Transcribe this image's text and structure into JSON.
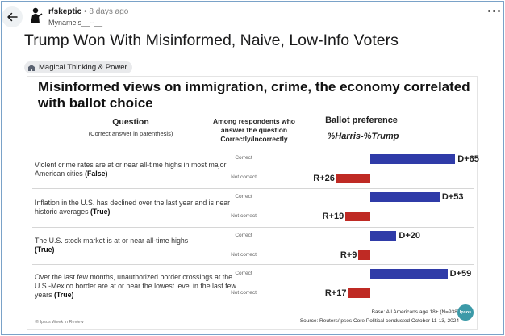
{
  "post": {
    "subreddit": "r/skeptic",
    "meta": "• 8 days ago",
    "username": "Mynameis__--__",
    "title": "Trump Won With Misinformed, Naive, Low-Info Voters",
    "flair": "Magical Thinking & Power"
  },
  "icons": {
    "back": "arrow-left-icon",
    "avatar": "snoo-avatar-icon",
    "more": "more-options-icon",
    "flair": "flair-icon"
  },
  "infographic": {
    "title": "Misinformed views on immigration, crime, the economy correlated with ballot choice",
    "col_question": "Question",
    "col_question_sub": "(Correct answer in parenthesis)",
    "col_among": "Among respondents who answer the question Correctly/Incorrectly",
    "col_ballot": "Ballot preference",
    "col_ballot_sub": "%Harris-%Trump",
    "label_correct": "Correct",
    "label_not_correct": "Not correct",
    "rows": [
      {
        "question": "Violent crime rates are at or near all-time highs in most major American cities",
        "answer": "(False)",
        "correct_value": "D+65",
        "not_correct_value": "R+26"
      },
      {
        "question": "Inflation in the U.S. has declined over the last year and is near historic averages",
        "answer": "(True)",
        "correct_value": "D+53",
        "not_correct_value": "R+19"
      },
      {
        "question": "The U.S. stock market is at or near all-time highs",
        "answer": "(True)",
        "correct_value": "D+20",
        "not_correct_value": "R+9"
      },
      {
        "question": "Over the last few months, unauthorized border crossings at the U.S.-Mexico border are at or near the lowest level in the last few years",
        "answer": "(True)",
        "correct_value": "D+59",
        "not_correct_value": "R+17"
      }
    ],
    "footer_left": "© Ipsos Week in Review",
    "footer_base": "Base: All Americans age 18+ (N=938)",
    "footer_source": "Source: Reuters/Ipsos Core Political conducted October 11-13, 2024",
    "logo": "Ipsos"
  },
  "chart_data": {
    "type": "bar",
    "title": "Misinformed views on immigration, crime, the economy correlated with ballot choice",
    "xlabel": "%Harris-%Trump",
    "categories": [
      "Violent crime rates are at or near all-time highs in most major American cities (False)",
      "Inflation in the U.S. has declined over the last year and is near historic averages (True)",
      "The U.S. stock market is at or near all-time highs (True)",
      "Over the last few months, unauthorized border crossings at the U.S.-Mexico border are at or near the lowest level in the last few years (True)"
    ],
    "series": [
      {
        "name": "Correct",
        "values": [
          65,
          53,
          20,
          59
        ],
        "color": "#2f3ba8"
      },
      {
        "name": "Not correct",
        "values": [
          -26,
          -19,
          -9,
          -17
        ],
        "color": "#bf2a24"
      }
    ]
  }
}
